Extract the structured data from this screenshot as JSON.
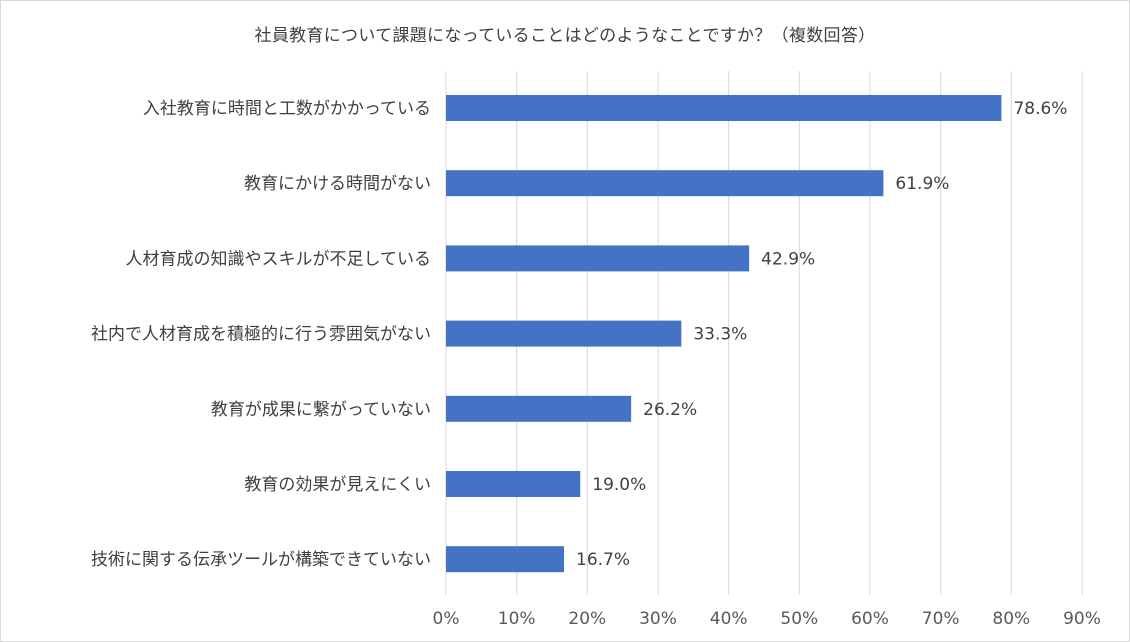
{
  "chart_data": {
    "type": "bar",
    "orientation": "horizontal",
    "title": "社員教育について課題になっていることはどのようなことですか？（複数回答）",
    "categories": [
      "入社教育に時間と工数がかかっている",
      "教育にかける時間がない",
      "人材育成の知識やスキルが不足している",
      "社内で人材育成を積極的に行う雰囲気がない",
      "教育が成果に繋がっていない",
      "教育の効果が見えにくい",
      "技術に関する伝承ツールが構築できていない"
    ],
    "values": [
      78.6,
      61.9,
      42.9,
      33.3,
      26.2,
      19.0,
      16.7
    ],
    "data_labels": [
      "78.6%",
      "61.9%",
      "42.9%",
      "33.3%",
      "26.2%",
      "19.0%",
      "16.7%"
    ],
    "xlim": [
      0,
      90
    ],
    "x_ticks": [
      0,
      10,
      20,
      30,
      40,
      50,
      60,
      70,
      80,
      90
    ],
    "x_tick_labels": [
      "0%",
      "10%",
      "20%",
      "30%",
      "40%",
      "50%",
      "60%",
      "70%",
      "80%",
      "90%"
    ],
    "xlabel": "",
    "ylabel": "",
    "grid": "vertical",
    "legend": "none",
    "bar_color": "#4472C4",
    "grid_color": "#D9D9D9"
  }
}
